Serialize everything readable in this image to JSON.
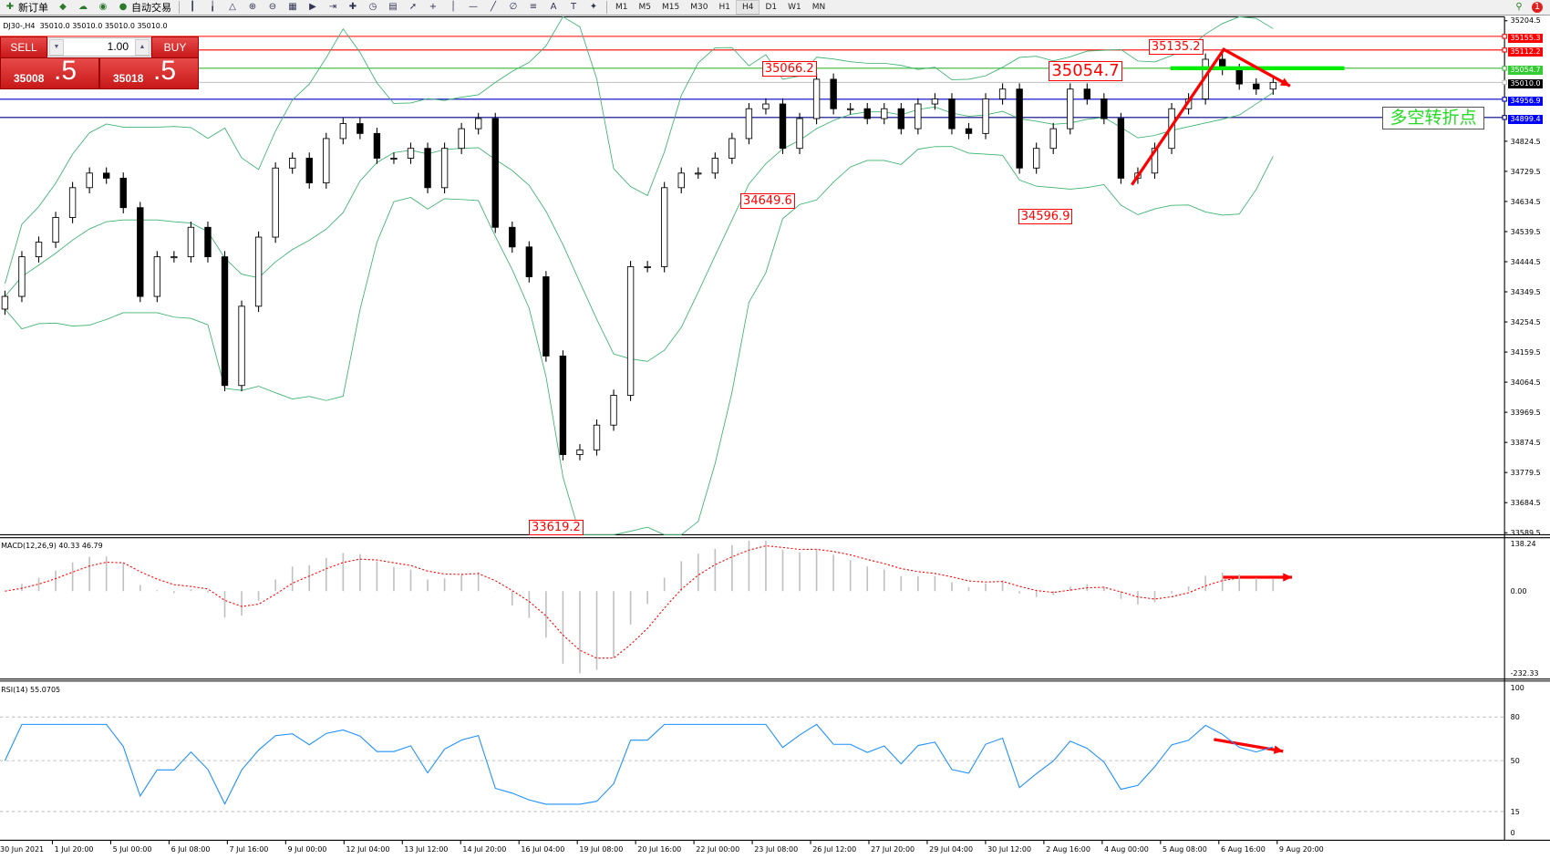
{
  "toolbar": {
    "items": [
      {
        "icon": "new-order-icon",
        "label": "新订单"
      },
      {
        "icon": "market-watch-icon",
        "label": ""
      },
      {
        "icon": "cloud-icon",
        "label": ""
      },
      {
        "icon": "signal-icon",
        "label": ""
      },
      {
        "icon": "autotrading-icon",
        "label": "自动交易"
      }
    ],
    "tools": [
      "bar-chart-icon",
      "candlestick-icon",
      "line-chart-icon",
      "zoom-in-icon",
      "zoom-out-icon",
      "tile-icon",
      "autoscroll-icon",
      "chart-shift-icon",
      "indicators-icon",
      "clock-icon",
      "template-icon",
      "cursor-icon",
      "crosshair-icon",
      "vertical-line-icon",
      "horizontal-line-icon",
      "trendline-icon",
      "fibonacci-icon",
      "channel-icon",
      "text-icon",
      "label-icon",
      "arrows-icon"
    ],
    "timeframes": [
      "M1",
      "M5",
      "M15",
      "M30",
      "H1",
      "H4",
      "D1",
      "W1",
      "MN"
    ],
    "active_timeframe": "H4",
    "right_icons": [
      "search-icon",
      "notification-icon"
    ],
    "notification_count": "1"
  },
  "chart_header": "DJ30-,H4  35010.0 35010.0 35010.0 35010.0",
  "trade_panel": {
    "sell_label": "SELL",
    "buy_label": "BUY",
    "lot": "1.00",
    "sell_small": "35008",
    "sell_big": ".5",
    "buy_small": "35018",
    "buy_big": ".5"
  },
  "price_axis": {
    "ticks": [
      "35204.5",
      "34824.5",
      "34729.5",
      "34634.5",
      "34539.5",
      "34444.5",
      "34349.5",
      "34254.5",
      "34159.5",
      "34064.5",
      "33969.5",
      "33874.5",
      "33779.5",
      "33684.5",
      "33589.5"
    ]
  },
  "hlines": [
    {
      "price": 35155.3,
      "label": "35155.3",
      "color": "#ff0000",
      "label_bg": "#ff0000"
    },
    {
      "price": 35112.2,
      "label": "35112.2",
      "color": "#ff0000",
      "label_bg": "#ff0000"
    },
    {
      "price": 35054.7,
      "label": "35054.7",
      "color": "#3cb93c",
      "label_bg": "#33cc33"
    },
    {
      "price": 35010.0,
      "label": "35010.0",
      "color": "#c0c0c0",
      "label_bg": "#000000"
    },
    {
      "price": 34956.9,
      "label": "34956.9",
      "color": "#0000cc",
      "label_bg": "#0000ff"
    },
    {
      "price": 34899.4,
      "label": "34899.4",
      "color": "#000080",
      "label_bg": "#0000ff"
    }
  ],
  "annotations": [
    {
      "text": "35066.2",
      "price": 35066.2
    },
    {
      "text": "34649.6",
      "price": 34649.6
    },
    {
      "text": "34596.9",
      "price": 34596.9
    },
    {
      "text": "33619.2",
      "price": 33619.2
    },
    {
      "text": "35135.2",
      "price": 35135.2
    },
    {
      "text": "35054.7",
      "price": 35054.7
    }
  ],
  "turning_point_label": "多空转折点",
  "time_axis": [
    "30 Jun 2021",
    "1 Jul 20:00",
    "5 Jul 00:00",
    "6 Jul 08:00",
    "7 Jul 16:00",
    "9 Jul 00:00",
    "12 Jul 04:00",
    "13 Jul 12:00",
    "14 Jul 20:00",
    "16 Jul 04:00",
    "19 Jul 08:00",
    "20 Jul 16:00",
    "22 Jul 00:00",
    "23 Jul 08:00",
    "26 Jul 12:00",
    "27 Jul 20:00",
    "29 Jul 04:00",
    "30 Jul 12:00",
    "2 Aug 16:00",
    "4 Aug 00:00",
    "5 Aug 08:00",
    "6 Aug 16:00",
    "9 Aug 20:00"
  ],
  "macd": {
    "label": "MACD(12,26,9) 40.33 46.79",
    "ticks": [
      "138.24",
      "0.00",
      "-232.33"
    ],
    "range": [
      -232.33,
      138.24
    ]
  },
  "rsi": {
    "label": "RSI(14) 55.0705",
    "ticks": [
      "100",
      "80",
      "50",
      "15",
      "0"
    ],
    "levels": [
      80,
      50,
      15
    ]
  },
  "colors": {
    "bands": "#3cb371",
    "macd_hist": "#c0c0c0",
    "macd_signal": "#ff0000",
    "rsi": "#1e90ff",
    "arrow": "#ff0000",
    "green_line": "#00ee00"
  },
  "chart_data": {
    "type": "candlestick",
    "symbol": "DJ30-",
    "timeframe": "H4",
    "ylim": [
      33589.5,
      35204.5
    ],
    "close": [
      34335,
      34460,
      34506,
      34584,
      34678,
      34724,
      34708,
      34615,
      34335,
      34460,
      34460,
      34553,
      34460,
      34054,
      34304,
      34522,
      34740,
      34771,
      34693,
      34833,
      34880,
      34849,
      34771,
      34771,
      34802,
      34678,
      34802,
      34864,
      34896,
      34553,
      34491,
      34397,
      34147,
      33836,
      33851,
      33929,
      34023,
      34429,
      34429,
      34678,
      34724,
      34724,
      34771,
      34833,
      34927,
      34942,
      34802,
      34896,
      35020,
      34927,
      34927,
      34896,
      34927,
      34864,
      34942,
      34958,
      34864,
      34849,
      34958,
      34989,
      34740,
      34802,
      34864,
      34989,
      34958,
      34896,
      34708,
      34724,
      34802,
      34927,
      34958,
      35083,
      35051,
      35005,
      34989,
      35010
    ],
    "indicators": [
      "Bollinger Bands",
      "MACD(12,26,9)",
      "RSI(14)"
    ]
  }
}
